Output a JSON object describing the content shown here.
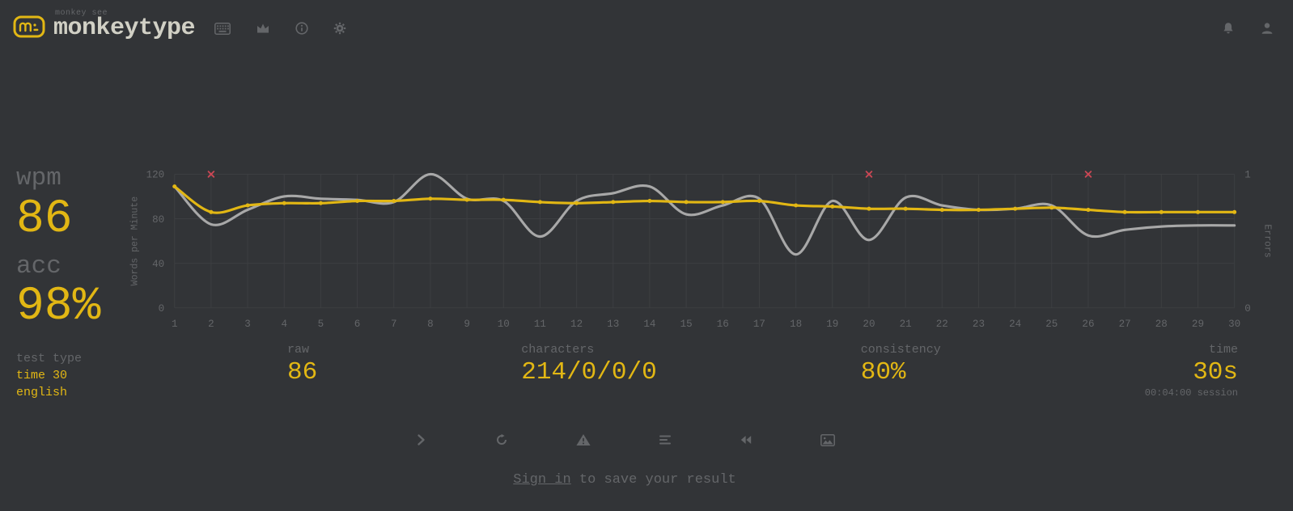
{
  "colors": {
    "background": "#323437",
    "accent": "#e2b714",
    "sub": "#646669",
    "text": "#d1d0c5",
    "error": "#ca4754",
    "raw_line": "#a8a8a8",
    "grid": "#3c3e41"
  },
  "header": {
    "logo_small_text": "monkey see",
    "logo_text": "monkeytype",
    "nav_icons": [
      "keyboard-icon",
      "crown-icon",
      "info-icon",
      "gear-icon"
    ],
    "right_icons": [
      "bell-icon",
      "user-icon"
    ]
  },
  "result": {
    "wpm_label": "wpm",
    "wpm_value": "86",
    "acc_label": "acc",
    "acc_value": "98%",
    "test_type_label": "test type",
    "test_type_line1": "time 30",
    "test_type_line2": "english"
  },
  "bottom_stats": [
    {
      "label": "raw",
      "value": "86"
    },
    {
      "label": "characters",
      "value": "214/0/0/0"
    },
    {
      "label": "consistency",
      "value": "80%"
    },
    {
      "label": "time",
      "value": "30s",
      "sub": "00:04:00 session"
    }
  ],
  "action_buttons": [
    "next-test",
    "restart-test",
    "report",
    "words-history",
    "watch-replay",
    "copy-screenshot"
  ],
  "signin": {
    "link_text": "Sign in",
    "suffix": " to save your result"
  },
  "chart_data": {
    "type": "line",
    "x": [
      1,
      2,
      3,
      4,
      5,
      6,
      7,
      8,
      9,
      10,
      11,
      12,
      13,
      14,
      15,
      16,
      17,
      18,
      19,
      20,
      21,
      22,
      23,
      24,
      25,
      26,
      27,
      28,
      29,
      30
    ],
    "ylabel_left": "Words per Minute",
    "ylabel_right": "Errors",
    "ylim_left": [
      0,
      120
    ],
    "ylim_right": [
      0,
      1
    ],
    "yticks_left": [
      0,
      40,
      80,
      120
    ],
    "yticks_right": [
      0,
      1
    ],
    "grid": true,
    "series": [
      {
        "name": "wpm",
        "color": "#e2b714",
        "width": 3,
        "dots": true,
        "values": [
          109,
          86,
          92,
          94,
          94,
          96,
          96,
          98,
          97,
          97,
          95,
          94,
          95,
          96,
          95,
          95,
          96,
          92,
          91,
          89,
          89,
          88,
          88,
          89,
          90,
          88,
          86,
          86,
          86,
          86
        ]
      },
      {
        "name": "raw",
        "color": "#a8a8a8",
        "width": 3,
        "dots": false,
        "values": [
          109,
          75,
          88,
          100,
          98,
          97,
          95,
          120,
          98,
          96,
          64,
          96,
          103,
          109,
          84,
          92,
          98,
          48,
          96,
          61,
          99,
          92,
          88,
          89,
          92,
          65,
          70,
          73,
          74,
          74
        ]
      }
    ],
    "errors": {
      "color": "#ca4754",
      "points": [
        {
          "x": 2,
          "value": 1
        },
        {
          "x": 20,
          "value": 1
        },
        {
          "x": 26,
          "value": 1
        }
      ]
    }
  }
}
